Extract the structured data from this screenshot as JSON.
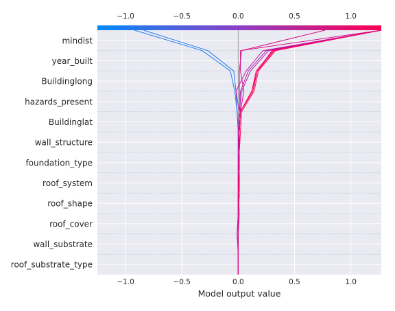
{
  "chart_data": {
    "type": "line",
    "subtype": "decision-plot",
    "title": "",
    "xlabel": "Model output value",
    "ylabel": "",
    "xlim": [
      -1.25,
      1.27
    ],
    "x_ticks": [
      -1.0,
      -0.5,
      0.0,
      0.5,
      1.0
    ],
    "x_tick_labels": [
      "−1.0",
      "−0.5",
      "0.0",
      "0.5",
      "1.0"
    ],
    "base_value": 0.0,
    "features": [
      "mindist",
      "year_built",
      "Buildinglong",
      "hazards_present",
      "Buildinglat",
      "wall_structure",
      "foundation_type",
      "roof_system",
      "roof_shape",
      "roof_cover",
      "wall_substrate",
      "roof_substrate_type"
    ],
    "grid": true,
    "colorbar": {
      "position": "top",
      "colors": [
        "#008bfb",
        "#8b3fc4",
        "#ff0051"
      ]
    },
    "series": [
      {
        "final_output": -0.92,
        "color": "#1e7ff0",
        "values": [
          0.0,
          0.0,
          0.0,
          0.0,
          0.0,
          0.0,
          0.0,
          0.0,
          -0.01,
          -0.03,
          -0.07,
          -0.32,
          -0.92
        ]
      },
      {
        "final_output": -0.84,
        "color": "#2a7ae9",
        "values": [
          0.0,
          0.0,
          0.0,
          0.0,
          0.0,
          0.0,
          0.0,
          0.0,
          -0.01,
          -0.02,
          -0.04,
          -0.27,
          -0.84
        ]
      },
      {
        "final_output": 0.77,
        "color": "#d8108a",
        "values": [
          0.0,
          0.0,
          0.0,
          0.01,
          0.0,
          0.01,
          0.0,
          0.01,
          0.02,
          0.01,
          0.01,
          0.03,
          0.77
        ]
      },
      {
        "final_output": 1.27,
        "color": "#a822b5",
        "values": [
          0.0,
          0.0,
          0.0,
          0.0,
          0.0,
          0.0,
          0.0,
          0.0,
          0.01,
          0.02,
          0.09,
          0.25,
          1.27
        ]
      },
      {
        "final_output": 1.27,
        "color": "#b81aa8",
        "values": [
          0.0,
          0.0,
          -0.01,
          0.0,
          0.01,
          0.0,
          0.01,
          0.0,
          0.01,
          0.03,
          0.11,
          0.27,
          1.27
        ]
      },
      {
        "final_output": 1.27,
        "color": "#c8139c",
        "values": [
          0.0,
          0.0,
          0.0,
          0.0,
          0.0,
          0.0,
          0.0,
          0.0,
          0.01,
          -0.02,
          0.07,
          0.22,
          1.27
        ]
      },
      {
        "final_output": 1.27,
        "color": "#ff0059",
        "values": [
          0.0,
          0.0,
          0.0,
          0.0,
          0.0,
          0.01,
          0.01,
          0.01,
          0.02,
          0.13,
          0.17,
          0.32,
          1.27
        ]
      },
      {
        "final_output": 1.27,
        "color": "#ff005a",
        "values": [
          0.0,
          0.0,
          0.0,
          0.0,
          0.01,
          0.01,
          0.01,
          0.02,
          0.03,
          0.14,
          0.18,
          0.33,
          1.27
        ]
      },
      {
        "final_output": 1.27,
        "color": "#fb0060",
        "values": [
          0.0,
          0.0,
          0.0,
          0.0,
          0.0,
          0.0,
          0.01,
          0.01,
          0.02,
          0.12,
          0.16,
          0.31,
          1.27
        ]
      },
      {
        "final_output": 1.27,
        "color": "#f30067",
        "values": [
          0.0,
          0.0,
          0.0,
          0.0,
          0.0,
          0.01,
          0.01,
          0.01,
          0.02,
          0.12,
          0.17,
          0.3,
          1.27
        ]
      },
      {
        "final_output": 1.27,
        "color": "#d80c85",
        "values": [
          0.0,
          0.0,
          0.0,
          0.0,
          0.01,
          0.0,
          0.01,
          0.01,
          0.02,
          0.05,
          0.02,
          0.02,
          1.27
        ]
      }
    ]
  }
}
